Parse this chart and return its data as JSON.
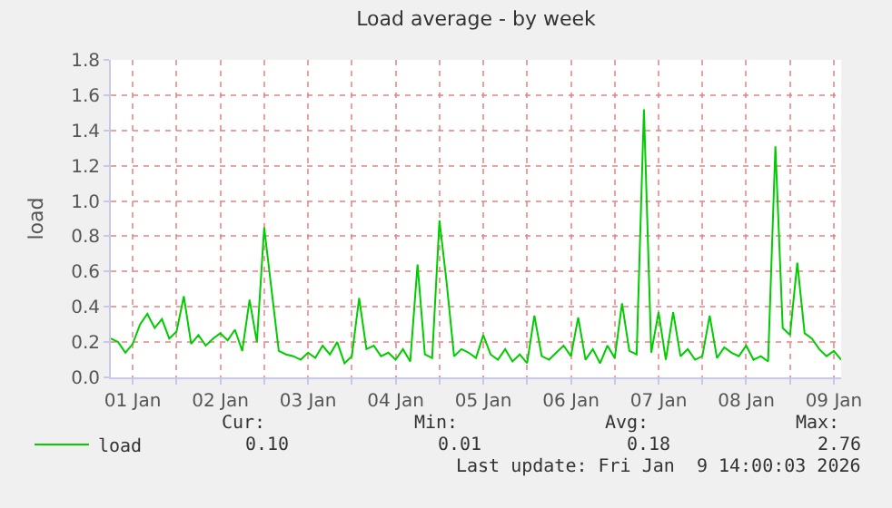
{
  "chart_data": {
    "type": "line",
    "title": "Load average - by week",
    "ylabel": "load",
    "x": [
      "2026-01-01T06:00",
      "2026-01-01T08:00",
      "2026-01-01T10:00",
      "2026-01-01T12:00",
      "2026-01-01T14:00",
      "2026-01-01T16:00",
      "2026-01-01T18:00",
      "2026-01-01T20:00",
      "2026-01-01T22:00",
      "2026-01-02T00:00",
      "2026-01-02T02:00",
      "2026-01-02T04:00",
      "2026-01-02T06:00",
      "2026-01-02T08:00",
      "2026-01-02T10:00",
      "2026-01-02T12:00",
      "2026-01-02T14:00",
      "2026-01-02T16:00",
      "2026-01-02T18:00",
      "2026-01-02T20:00",
      "2026-01-02T22:00",
      "2026-01-03T00:00",
      "2026-01-03T02:00",
      "2026-01-03T04:00",
      "2026-01-03T06:00",
      "2026-01-03T08:00",
      "2026-01-03T10:00",
      "2026-01-03T12:00",
      "2026-01-03T14:00",
      "2026-01-03T16:00",
      "2026-01-03T18:00",
      "2026-01-03T20:00",
      "2026-01-03T22:00",
      "2026-01-04T00:00",
      "2026-01-04T02:00",
      "2026-01-04T04:00",
      "2026-01-04T06:00",
      "2026-01-04T08:00",
      "2026-01-04T10:00",
      "2026-01-04T12:00",
      "2026-01-04T14:00",
      "2026-01-04T16:00",
      "2026-01-04T18:00",
      "2026-01-04T20:00",
      "2026-01-04T22:00",
      "2026-01-05T00:00",
      "2026-01-05T02:00",
      "2026-01-05T04:00",
      "2026-01-05T06:00",
      "2026-01-05T08:00",
      "2026-01-05T10:00",
      "2026-01-05T12:00",
      "2026-01-05T14:00",
      "2026-01-05T16:00",
      "2026-01-05T18:00",
      "2026-01-05T20:00",
      "2026-01-05T22:00",
      "2026-01-06T00:00",
      "2026-01-06T02:00",
      "2026-01-06T04:00",
      "2026-01-06T06:00",
      "2026-01-06T08:00",
      "2026-01-06T10:00",
      "2026-01-06T12:00",
      "2026-01-06T14:00",
      "2026-01-06T16:00",
      "2026-01-06T18:00",
      "2026-01-06T20:00",
      "2026-01-06T22:00",
      "2026-01-07T00:00",
      "2026-01-07T02:00",
      "2026-01-07T04:00",
      "2026-01-07T06:00",
      "2026-01-07T08:00",
      "2026-01-07T10:00",
      "2026-01-07T12:00",
      "2026-01-07T14:00",
      "2026-01-07T16:00",
      "2026-01-07T18:00",
      "2026-01-07T20:00",
      "2026-01-07T22:00",
      "2026-01-08T00:00",
      "2026-01-08T02:00",
      "2026-01-08T04:00",
      "2026-01-08T06:00",
      "2026-01-08T08:00",
      "2026-01-08T10:00",
      "2026-01-08T12:00",
      "2026-01-08T14:00",
      "2026-01-08T16:00",
      "2026-01-08T18:00",
      "2026-01-08T20:00",
      "2026-01-08T22:00",
      "2026-01-09T00:00",
      "2026-01-09T02:00",
      "2026-01-09T04:00",
      "2026-01-09T06:00",
      "2026-01-09T08:00",
      "2026-01-09T10:00",
      "2026-01-09T12:00",
      "2026-01-09T14:00"
    ],
    "series": [
      {
        "name": "load",
        "color": "#00cc00",
        "values": [
          0.22,
          0.2,
          0.14,
          0.19,
          0.3,
          0.36,
          0.28,
          0.33,
          0.22,
          0.26,
          0.46,
          0.19,
          0.24,
          0.18,
          0.22,
          0.25,
          0.21,
          0.27,
          0.15,
          0.44,
          0.2,
          0.85,
          0.5,
          0.15,
          0.13,
          0.12,
          0.1,
          0.14,
          0.11,
          0.18,
          0.13,
          0.2,
          0.08,
          0.12,
          0.45,
          0.16,
          0.18,
          0.12,
          0.14,
          0.1,
          0.16,
          0.09,
          0.64,
          0.13,
          0.11,
          0.89,
          0.53,
          0.12,
          0.16,
          0.14,
          0.11,
          0.24,
          0.13,
          0.1,
          0.16,
          0.09,
          0.13,
          0.08,
          0.35,
          0.12,
          0.1,
          0.14,
          0.18,
          0.12,
          0.34,
          0.1,
          0.16,
          0.08,
          0.18,
          0.11,
          0.42,
          0.15,
          0.13,
          1.52,
          0.14,
          0.37,
          0.1,
          0.37,
          0.12,
          0.16,
          0.1,
          0.12,
          0.35,
          0.11,
          0.17,
          0.14,
          0.12,
          0.18,
          0.1,
          0.12,
          0.09,
          1.31,
          0.28,
          0.24,
          0.65,
          0.25,
          0.22,
          0.16,
          0.12,
          0.15,
          0.1
        ]
      }
    ],
    "xlim": [
      "2026-01-01T06:00",
      "2026-01-09T14:00"
    ],
    "xticks": [
      {
        "value": "2026-01-01T12:00",
        "label": "01 Jan"
      },
      {
        "value": "2026-01-02T00:00",
        "label": null
      },
      {
        "value": "2026-01-02T12:00",
        "label": "02 Jan"
      },
      {
        "value": "2026-01-03T00:00",
        "label": null
      },
      {
        "value": "2026-01-03T12:00",
        "label": "03 Jan"
      },
      {
        "value": "2026-01-04T00:00",
        "label": null
      },
      {
        "value": "2026-01-04T12:00",
        "label": "04 Jan"
      },
      {
        "value": "2026-01-05T00:00",
        "label": null
      },
      {
        "value": "2026-01-05T12:00",
        "label": "05 Jan"
      },
      {
        "value": "2026-01-06T00:00",
        "label": null
      },
      {
        "value": "2026-01-06T12:00",
        "label": "06 Jan"
      },
      {
        "value": "2026-01-07T00:00",
        "label": null
      },
      {
        "value": "2026-01-07T12:00",
        "label": "07 Jan"
      },
      {
        "value": "2026-01-08T00:00",
        "label": null
      },
      {
        "value": "2026-01-08T12:00",
        "label": "08 Jan"
      },
      {
        "value": "2026-01-09T00:00",
        "label": null
      },
      {
        "value": "2026-01-09T12:00",
        "label": "09 Jan"
      }
    ],
    "ylim": [
      0,
      1.8
    ],
    "yticks": [
      {
        "value": 0,
        "label": "0.0"
      },
      0.2,
      0.4,
      0.6,
      0.8,
      {
        "value": 1,
        "label": "1.0"
      },
      1.2,
      1.4,
      1.6,
      1.8
    ],
    "grid": true,
    "legend": "bottom left",
    "marker": "none",
    "line_style": "solid",
    "annotations": [
      "Cur:",
      "Min:",
      "Avg:",
      "Max:",
      "0.10",
      "0.01",
      "0.18",
      "2.76",
      "Last update: Fri Jan  9 14:00:03 2026"
    ]
  }
}
